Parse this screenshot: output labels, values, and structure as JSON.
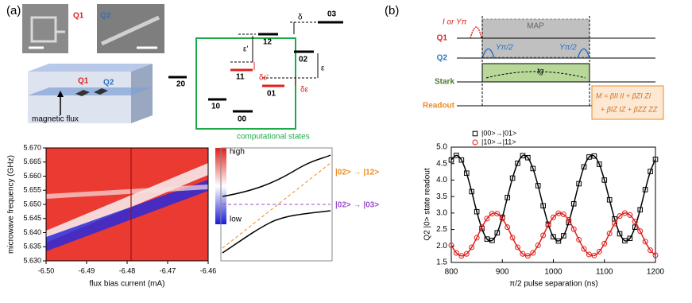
{
  "panel_labels": [
    "(a)",
    "(b)"
  ],
  "device": {
    "q1": "Q1",
    "q2": "Q2",
    "device_q1": "Q1",
    "device_q2": "Q2",
    "flux": "magnetic flux"
  },
  "levels": {
    "l20": "20",
    "l10": "10",
    "l00": "00",
    "l11": "11",
    "l01": "01",
    "l02": "02",
    "l12": "12",
    "l03": "03",
    "delta": "δ",
    "eps_prime": "ε'",
    "eps": "ε",
    "d_eps_prime": "δε'",
    "d_eps": "δε",
    "box": "computational states"
  },
  "heatmap": {
    "ylabel": "microwave frequency (GHz)",
    "xlabel": "flux bias current (mA)",
    "xlim": [
      -6.5,
      -6.46
    ],
    "xticks": [
      {
        "value": -6.5,
        "label": "-6.50"
      },
      {
        "value": -6.49,
        "label": "-6.49"
      },
      {
        "value": -6.48,
        "label": "-6.48"
      },
      {
        "value": -6.47,
        "label": "-6.47"
      },
      {
        "value": -6.46,
        "label": "-6.46"
      }
    ],
    "ylim": [
      5.63,
      5.67
    ],
    "yticks": [
      {
        "value": 5.63,
        "label": "5.630"
      },
      {
        "value": 5.635,
        "label": "5.635"
      },
      {
        "value": 5.64,
        "label": "5.640"
      },
      {
        "value": 5.645,
        "label": "5.645"
      },
      {
        "value": 5.65,
        "label": "5.650"
      },
      {
        "value": 5.655,
        "label": "5.655"
      },
      {
        "value": 5.66,
        "label": "5.660"
      },
      {
        "value": 5.665,
        "label": "5.665"
      },
      {
        "value": 5.67,
        "label": "5.670"
      }
    ],
    "colorbar": {
      "high": "high",
      "low": "low"
    }
  },
  "anticrossing": {
    "upper": "|02> → |12>",
    "lower": "|02> → |03>"
  },
  "pulse": {
    "q1": "Q1",
    "q2": "Q2",
    "stark": "Stark",
    "readout": "Readout",
    "q1_note": "I or Yπ",
    "map": "MAP",
    "ypi2_a": "Yπ/2",
    "ypi2_b": "Yπ/2",
    "tg": "tg",
    "formula1": "M = βII II + βZI ZI",
    "formula2": "+ βIZ IZ + βZZ ZZ"
  },
  "chart_data": {
    "type": "scatter",
    "xlabel": "π/2 pulse separation (ns)",
    "ylabel": "Q2 |0> state readout",
    "xlim": [
      800,
      1200
    ],
    "xticks": [
      800,
      900,
      1000,
      1100,
      1200
    ],
    "ylim": [
      1.5,
      5.0
    ],
    "yticks": [
      1.5,
      {
        "value": 2.0,
        "label": "2.0"
      },
      2.5,
      {
        "value": 3.0,
        "label": "3.0"
      },
      3.5,
      {
        "value": 4.0,
        "label": "4.0"
      },
      4.5,
      {
        "value": 5.0,
        "label": "5.0"
      }
    ],
    "x": [
      800,
      810,
      820,
      830,
      840,
      850,
      860,
      870,
      880,
      890,
      900,
      910,
      920,
      930,
      940,
      950,
      960,
      970,
      980,
      990,
      1000,
      1010,
      1020,
      1030,
      1040,
      1050,
      1060,
      1070,
      1080,
      1090,
      1100,
      1110,
      1120,
      1130,
      1140,
      1150,
      1160,
      1170,
      1180,
      1190,
      1200
    ],
    "series": [
      {
        "name": "|00>→|01>",
        "color": "#000000",
        "marker": "square",
        "values": [
          4.61,
          4.75,
          4.61,
          4.21,
          3.65,
          3.04,
          2.53,
          2.21,
          2.17,
          2.4,
          2.87,
          3.47,
          4.06,
          4.51,
          4.74,
          4.68,
          4.35,
          3.83,
          3.22,
          2.66,
          2.28,
          2.15,
          2.31,
          2.71,
          3.28,
          3.89,
          4.4,
          4.7,
          4.73,
          4.48,
          4.0,
          3.4,
          2.82,
          2.37,
          2.16,
          2.23,
          2.57,
          3.1,
          3.71,
          4.26,
          4.63
        ]
      },
      {
        "name": "|10>→|11>",
        "color": "#e0201c",
        "marker": "circle",
        "values": [
          2.02,
          1.79,
          1.7,
          1.76,
          1.96,
          2.25,
          2.57,
          2.83,
          2.98,
          2.98,
          2.83,
          2.57,
          2.25,
          1.96,
          1.76,
          1.7,
          1.79,
          2.02,
          2.32,
          2.63,
          2.87,
          2.99,
          2.96,
          2.79,
          2.51,
          2.19,
          1.91,
          1.74,
          1.71,
          1.83,
          2.07,
          2.38,
          2.68,
          2.91,
          3.0,
          2.94,
          2.74,
          2.45,
          2.13,
          1.87,
          1.72
        ]
      }
    ]
  }
}
